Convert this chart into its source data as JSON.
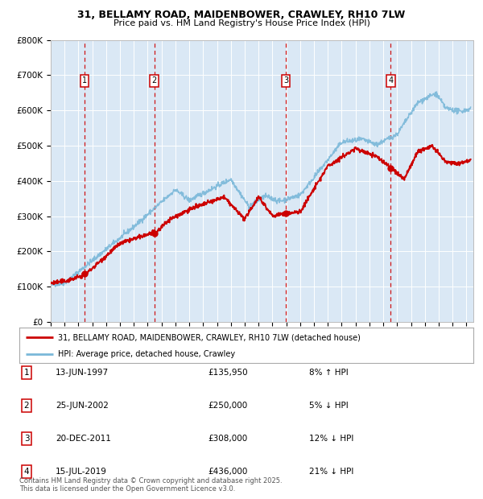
{
  "title_line1": "31, BELLAMY ROAD, MAIDENBOWER, CRAWLEY, RH10 7LW",
  "title_line2": "Price paid vs. HM Land Registry's House Price Index (HPI)",
  "hpi_color": "#7ab8d9",
  "price_color": "#cc0000",
  "marker_color": "#cc0000",
  "plot_bg_color": "#dae8f5",
  "grid_color": "#ffffff",
  "dashed_line_color": "#cc0000",
  "yticks": [
    0,
    100000,
    200000,
    300000,
    400000,
    500000,
    600000,
    700000,
    800000
  ],
  "ytick_labels": [
    "£0",
    "£100K",
    "£200K",
    "£300K",
    "£400K",
    "£500K",
    "£600K",
    "£700K",
    "£800K"
  ],
  "xmin": 1995.0,
  "xmax": 2025.5,
  "ymin": 0,
  "ymax": 800000,
  "purchases": [
    {
      "num": 1,
      "date": "13-JUN-1997",
      "year": 1997.45,
      "price": 135950,
      "pct": "8%",
      "dir": "↑"
    },
    {
      "num": 2,
      "date": "25-JUN-2002",
      "year": 2002.48,
      "price": 250000,
      "pct": "5%",
      "dir": "↓"
    },
    {
      "num": 3,
      "date": "20-DEC-2011",
      "year": 2011.97,
      "price": 308000,
      "pct": "12%",
      "dir": "↓"
    },
    {
      "num": 4,
      "date": "15-JUL-2019",
      "year": 2019.54,
      "price": 436000,
      "pct": "21%",
      "dir": "↓"
    }
  ],
  "legend_label_price": "31, BELLAMY ROAD, MAIDENBOWER, CRAWLEY, RH10 7LW (detached house)",
  "legend_label_hpi": "HPI: Average price, detached house, Crawley",
  "footnote": "Contains HM Land Registry data © Crown copyright and database right 2025.\nThis data is licensed under the Open Government Licence v3.0.",
  "table_rows": [
    [
      "1",
      "13-JUN-1997",
      "£135,950",
      "8% ↑ HPI"
    ],
    [
      "2",
      "25-JUN-2002",
      "£250,000",
      "5% ↓ HPI"
    ],
    [
      "3",
      "20-DEC-2011",
      "£308,000",
      "12% ↓ HPI"
    ],
    [
      "4",
      "15-JUL-2019",
      "£436,000",
      "21% ↓ HPI"
    ]
  ]
}
